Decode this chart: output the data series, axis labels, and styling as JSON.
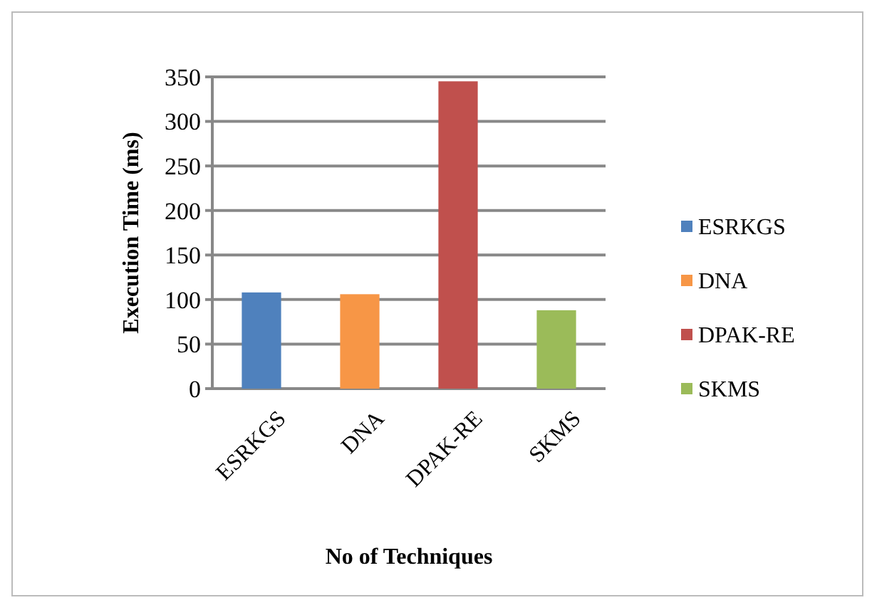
{
  "chart_data": {
    "type": "bar",
    "xlabel": "No of Techniques",
    "ylabel": "Execution Time (ms)",
    "categories": [
      "ESRKGS",
      "DNA",
      "DPAK-RE",
      "SKMS"
    ],
    "series": [
      {
        "name": "ESRKGS",
        "color": "#4f81bd",
        "values": [
          108,
          null,
          null,
          null
        ]
      },
      {
        "name": "DNA",
        "color": "#f79646",
        "values": [
          null,
          106,
          null,
          null
        ]
      },
      {
        "name": "DPAK-RE",
        "color": "#c0504d",
        "values": [
          null,
          null,
          345,
          null
        ]
      },
      {
        "name": "SKMS",
        "color": "#9bbb59",
        "values": [
          null,
          null,
          null,
          88
        ]
      }
    ],
    "ylim": [
      0,
      350
    ],
    "yticks": [
      0,
      50,
      100,
      150,
      200,
      250,
      300,
      350
    ],
    "grid": "y",
    "legend": "right"
  }
}
